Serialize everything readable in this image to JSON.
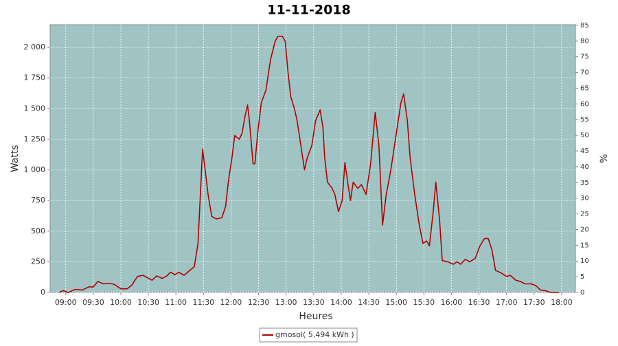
{
  "chart_data": {
    "type": "line",
    "title": "11-11-2018",
    "xlabel": "Heures",
    "ylabel": "Watts",
    "y2label": "%",
    "x": [
      "08:53",
      "08:57",
      "09:03",
      "09:10",
      "09:18",
      "09:25",
      "09:30",
      "09:35",
      "09:41",
      "09:47",
      "09:53",
      "10:00",
      "10:07",
      "10:12",
      "10:18",
      "10:24",
      "10:29",
      "10:34",
      "10:39",
      "10:45",
      "10:50",
      "10:54",
      "10:59",
      "11:03",
      "11:09",
      "11:15",
      "11:20",
      "11:24",
      "11:29",
      "11:31",
      "11:35",
      "11:39",
      "11:44",
      "11:50",
      "11:54",
      "11:57",
      "12:01",
      "12:04",
      "12:09",
      "12:12",
      "12:15",
      "12:18",
      "12:20",
      "12:24",
      "12:26",
      "12:29",
      "12:33",
      "12:38",
      "12:43",
      "12:48",
      "12:51",
      "12:56",
      "12:59",
      "13:02",
      "13:05",
      "13:09",
      "13:12",
      "13:16",
      "13:20",
      "13:23",
      "13:28",
      "13:32",
      "13:37",
      "13:40",
      "13:42",
      "13:45",
      "13:50",
      "13:53",
      "13:57",
      "14:01",
      "14:04",
      "14:07",
      "14:10",
      "14:13",
      "14:18",
      "14:22",
      "14:27",
      "14:32",
      "14:37",
      "14:41",
      "14:45",
      "14:49",
      "14:54",
      "15:00",
      "15:05",
      "15:08",
      "15:12",
      "15:15",
      "15:20",
      "15:25",
      "15:29",
      "15:33",
      "15:36",
      "15:40",
      "15:43",
      "15:47",
      "15:50",
      "15:56",
      "16:02",
      "16:06",
      "16:10",
      "16:15",
      "16:20",
      "16:26",
      "16:31",
      "16:36",
      "16:40",
      "16:44",
      "16:48",
      "16:54",
      "17:00",
      "17:04",
      "17:10",
      "17:15",
      "17:20",
      "17:27",
      "17:32",
      "17:37",
      "17:42",
      "17:48",
      "17:57"
    ],
    "series": [
      {
        "name": "gmosol( 5,494 kWh )",
        "color": "#b00000",
        "values": [
          0,
          15,
          0,
          25,
          20,
          45,
          45,
          90,
          70,
          75,
          65,
          30,
          30,
          60,
          130,
          140,
          120,
          100,
          135,
          115,
          135,
          165,
          145,
          165,
          140,
          180,
          210,
          400,
          1170,
          1050,
          800,
          620,
          600,
          610,
          700,
          900,
          1100,
          1280,
          1250,
          1300,
          1430,
          1530,
          1400,
          1050,
          1050,
          1300,
          1550,
          1650,
          1900,
          2050,
          2090,
          2090,
          2050,
          1800,
          1600,
          1500,
          1400,
          1200,
          1000,
          1100,
          1200,
          1400,
          1490,
          1350,
          1100,
          900,
          850,
          800,
          660,
          750,
          1060,
          900,
          750,
          900,
          850,
          880,
          800,
          1050,
          1470,
          1200,
          550,
          800,
          1000,
          1300,
          1550,
          1620,
          1400,
          1100,
          800,
          550,
          400,
          420,
          380,
          650,
          900,
          600,
          260,
          250,
          230,
          250,
          230,
          270,
          250,
          280,
          380,
          440,
          440,
          350,
          180,
          160,
          130,
          140,
          100,
          90,
          70,
          70,
          55,
          20,
          15,
          0,
          0
        ]
      }
    ],
    "xlim": [
      "08:43",
      "18:15"
    ],
    "xticks": [
      "09:00",
      "09:30",
      "10:00",
      "10:30",
      "11:00",
      "11:30",
      "12:00",
      "12:30",
      "13:00",
      "13:30",
      "14:00",
      "14:30",
      "15:00",
      "15:30",
      "16:00",
      "16:30",
      "17:00",
      "17:30",
      "18:00"
    ],
    "ylim": [
      0,
      2185
    ],
    "yticks": [
      0,
      250,
      500,
      750,
      {
        "value": 1000,
        "label": "1 000"
      },
      {
        "value": 1250,
        "label": "1 250"
      },
      {
        "value": 1500,
        "label": "1 500"
      },
      {
        "value": 1750,
        "label": "1 750"
      },
      {
        "value": 2000,
        "label": "2 000"
      }
    ],
    "y2lim": [
      0,
      85.2
    ],
    "y2ticks": [
      0,
      5,
      10,
      15,
      20,
      25,
      30,
      35,
      40,
      45,
      50,
      55,
      60,
      65,
      70,
      75,
      80,
      85
    ],
    "grid": true,
    "background": "#a0c4c4"
  }
}
